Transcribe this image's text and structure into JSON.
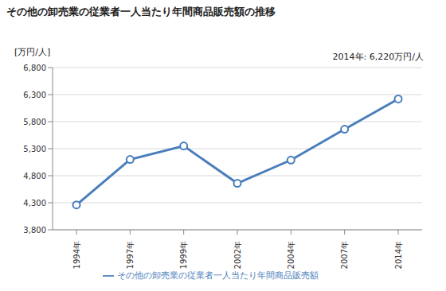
{
  "chart_data": {
    "type": "line",
    "title": "その他の卸売業の従業者一人当たり年間商品販売額の推移",
    "y_label": "[万円/人]",
    "annotation": "2014年: 6,220万円/人",
    "categories": [
      "1994年",
      "1997年",
      "1999年",
      "2002年",
      "2004年",
      "2007年",
      "2014年"
    ],
    "series": [
      {
        "name": "その他の卸売業の従業者一人当たり年間商品販売額",
        "color": "#4a7ebb",
        "values": [
          4260,
          5100,
          5350,
          4660,
          5090,
          5660,
          6220
        ],
        "marker": "circle"
      }
    ],
    "ylim": [
      3800,
      6800
    ],
    "yticks": [
      {
        "value": 3800,
        "label": "3,800"
      },
      {
        "value": 4300,
        "label": "4,300"
      },
      {
        "value": 4800,
        "label": "4,800"
      },
      {
        "value": 5300,
        "label": "5,300"
      },
      {
        "value": 5800,
        "label": "5,800"
      },
      {
        "value": 6300,
        "label": "6,300"
      },
      {
        "value": 6800,
        "label": "6,800"
      }
    ],
    "grid": true
  }
}
